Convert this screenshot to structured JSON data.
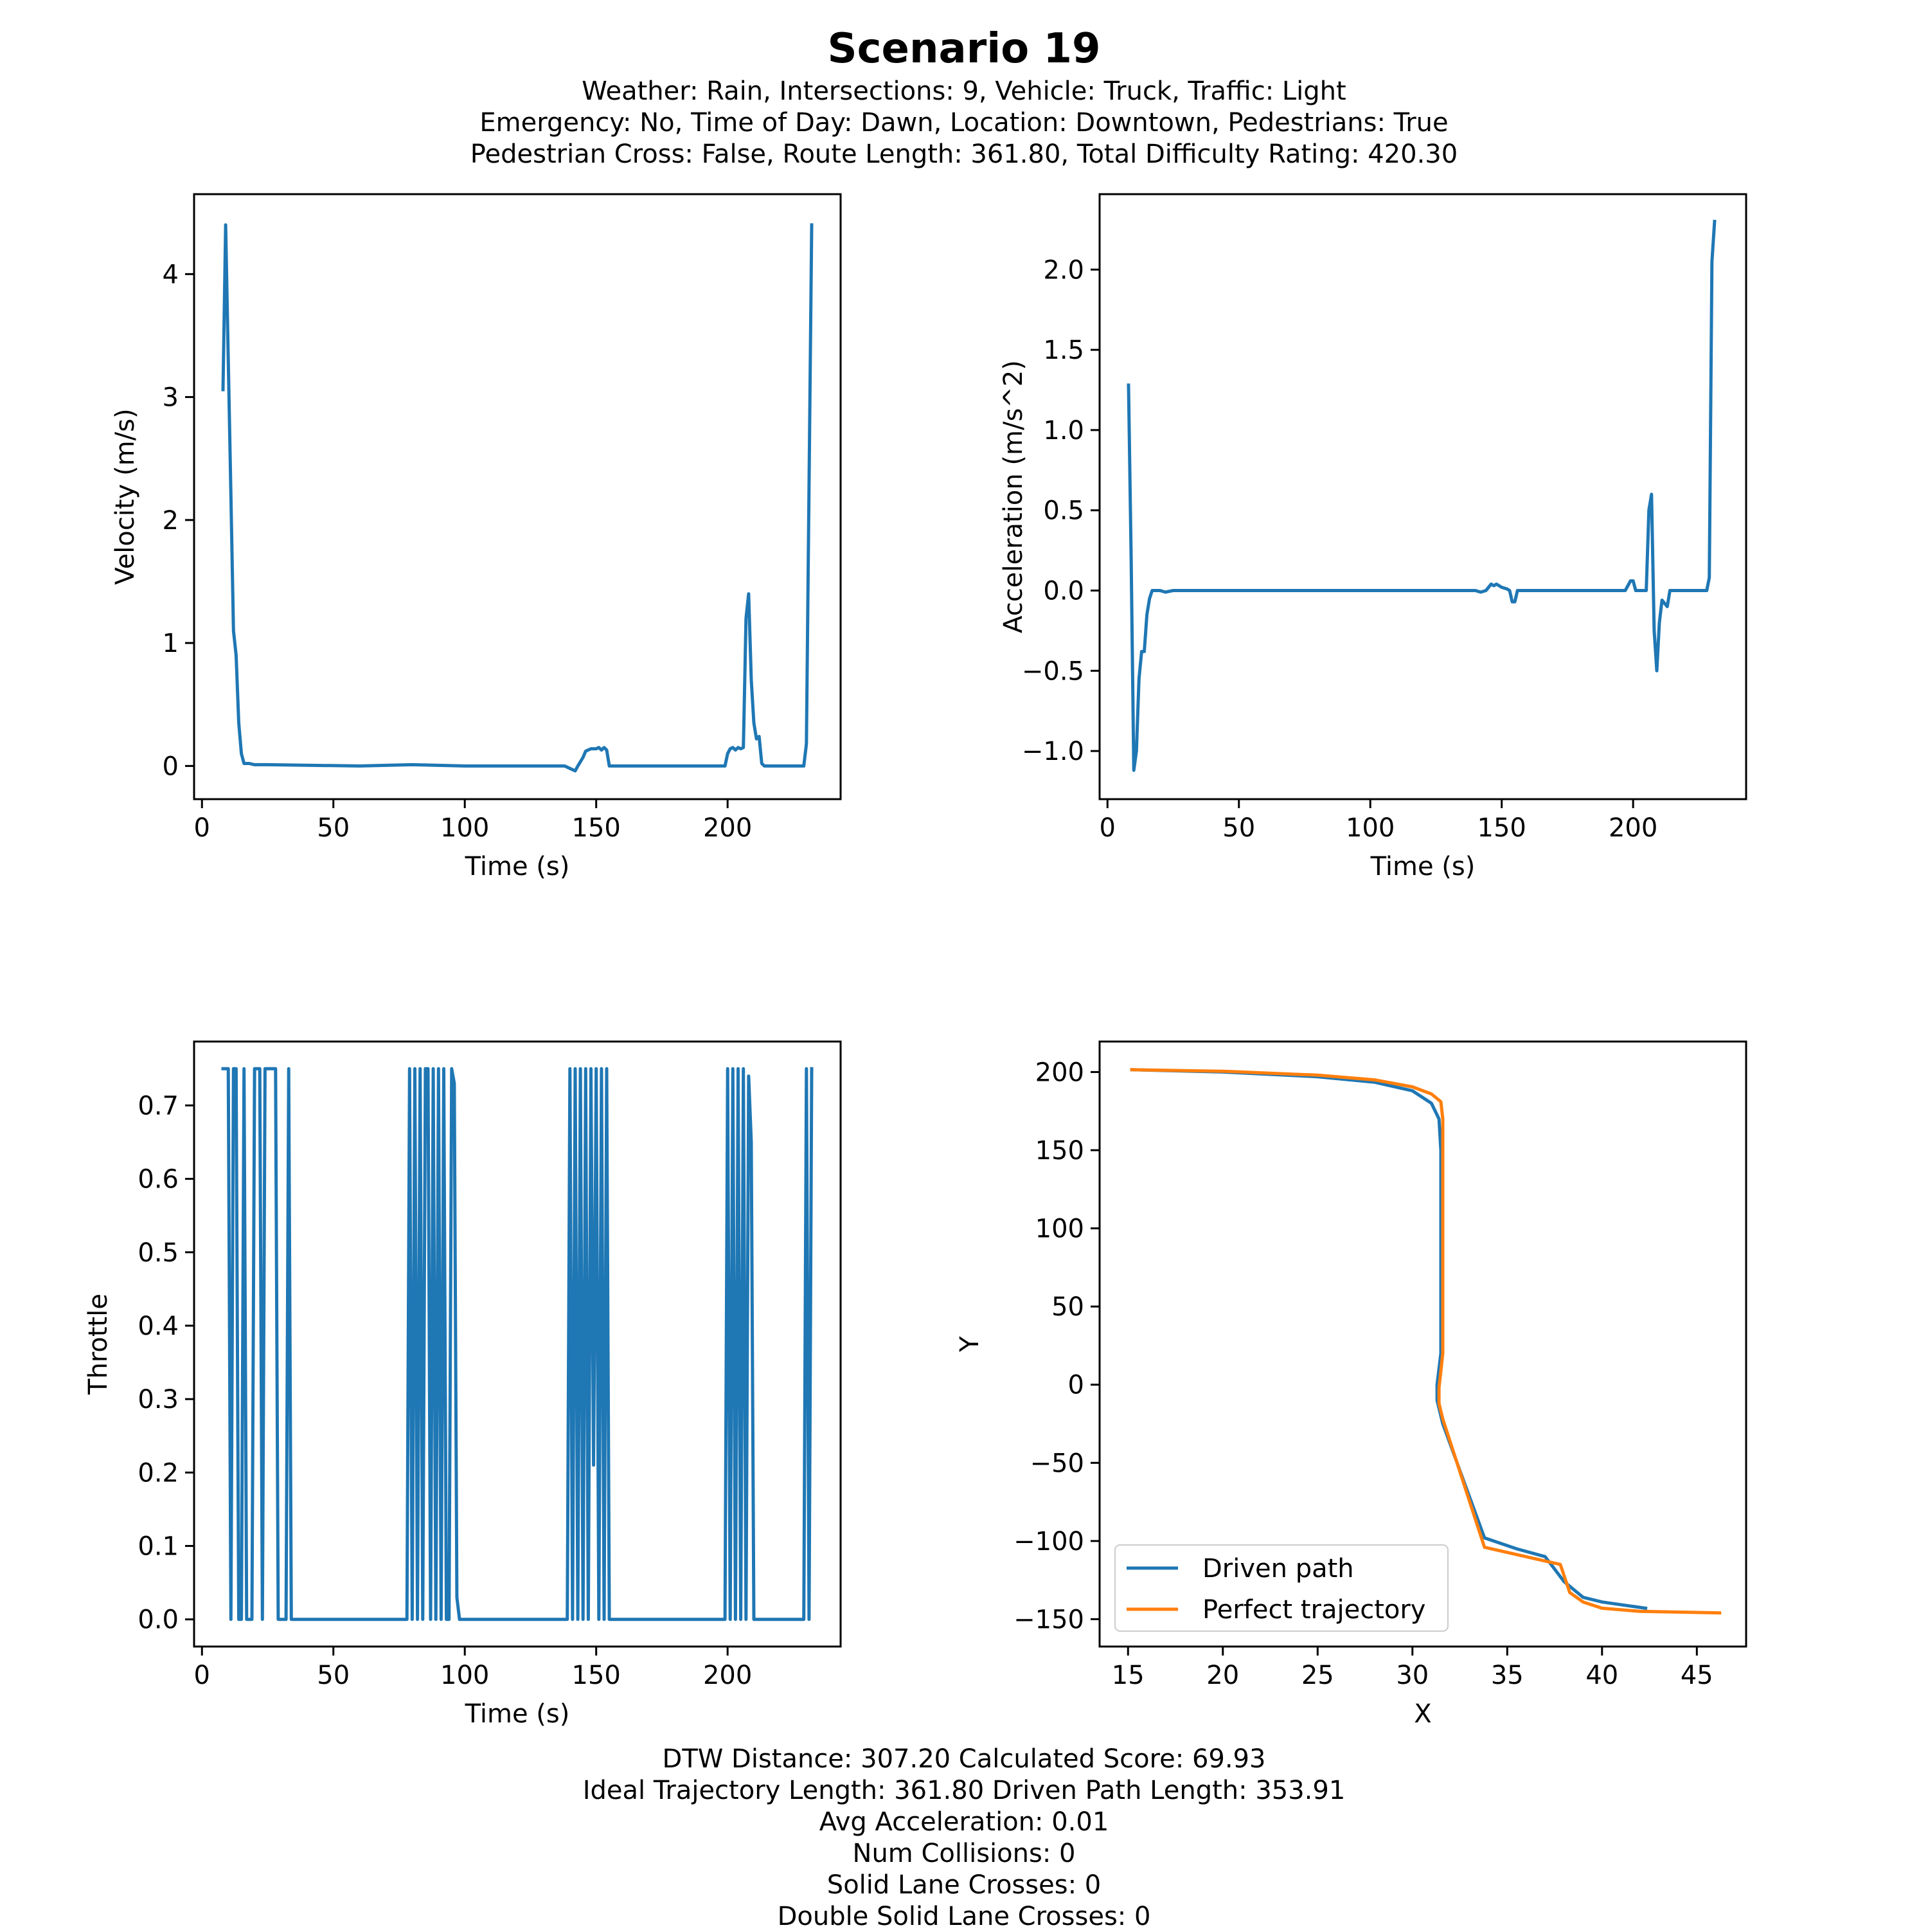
{
  "figure": {
    "title": "Scenario 19",
    "subtitle_lines": [
      "Weather: Rain, Intersections: 9, Vehicle: Truck, Traffic: Light",
      "Emergency: No, Time of Day: Dawn, Location: Downtown, Pedestrians: True",
      "Pedestrian Cross: False, Route Length: 361.80, Total Difficulty Rating: 420.30"
    ],
    "metrics_lines": [
      "DTW Distance: 307.20  Calculated Score: 69.93",
      "Ideal Trajectory Length: 361.80   Driven Path Length: 353.91",
      "Avg Acceleration: 0.01",
      "Num Collisions: 0",
      "Solid Lane Crosses: 0",
      "Double Solid Lane Crosses: 0"
    ]
  },
  "colors": {
    "series1": "#1f77b4",
    "series2": "#ff7f0e",
    "axis": "#000000"
  },
  "chart_data": [
    {
      "id": "velocity",
      "type": "line",
      "xlabel": "Time (s)",
      "ylabel": "Velocity (m/s)",
      "xlim": [
        -3,
        243
      ],
      "ylim": [
        -0.27,
        4.65
      ],
      "xticks": [
        0,
        50,
        100,
        150,
        200
      ],
      "yticks": [
        0,
        1,
        2,
        3,
        4
      ],
      "ytick_labels": [
        "0",
        "1",
        "2",
        "3",
        "4"
      ],
      "series": [
        {
          "name": "Velocity",
          "color_key": "series1",
          "points": [
            [
              8,
              3.06
            ],
            [
              9,
              4.4
            ],
            [
              11,
              2.2
            ],
            [
              12,
              1.1
            ],
            [
              13,
              0.9
            ],
            [
              14,
              0.35
            ],
            [
              15,
              0.1
            ],
            [
              16,
              0.02
            ],
            [
              18,
              0.02
            ],
            [
              20,
              0.01
            ],
            [
              25,
              0.01
            ],
            [
              60,
              0.0
            ],
            [
              80,
              0.01
            ],
            [
              100,
              0.0
            ],
            [
              138,
              0.0
            ],
            [
              140,
              -0.02
            ],
            [
              142,
              -0.04
            ],
            [
              143,
              0.0
            ],
            [
              145,
              0.07
            ],
            [
              146,
              0.12
            ],
            [
              148,
              0.14
            ],
            [
              150,
              0.14
            ],
            [
              151,
              0.15
            ],
            [
              152,
              0.13
            ],
            [
              153,
              0.15
            ],
            [
              154,
              0.13
            ],
            [
              155,
              0.0
            ],
            [
              199,
              0.0
            ],
            [
              200,
              0.1
            ],
            [
              201,
              0.14
            ],
            [
              202,
              0.15
            ],
            [
              203,
              0.13
            ],
            [
              204,
              0.15
            ],
            [
              205,
              0.14
            ],
            [
              206,
              0.15
            ],
            [
              207,
              1.2
            ],
            [
              208,
              1.4
            ],
            [
              209,
              0.7
            ],
            [
              210,
              0.35
            ],
            [
              211,
              0.22
            ],
            [
              212,
              0.24
            ],
            [
              213,
              0.02
            ],
            [
              214,
              0.0
            ],
            [
              229,
              0.0
            ],
            [
              230,
              0.18
            ],
            [
              232,
              4.4
            ]
          ]
        }
      ]
    },
    {
      "id": "acceleration",
      "type": "line",
      "xlabel": "Time (s)",
      "ylabel": "Acceleration (m/s^2)",
      "xlim": [
        -3,
        243
      ],
      "ylim": [
        -1.3,
        2.47
      ],
      "xticks": [
        0,
        50,
        100,
        150,
        200
      ],
      "yticks": [
        -1.0,
        -0.5,
        0.0,
        0.5,
        1.0,
        1.5,
        2.0
      ],
      "ytick_labels": [
        "−1.0",
        "−0.5",
        "0.0",
        "0.5",
        "1.0",
        "1.5",
        "2.0"
      ],
      "series": [
        {
          "name": "Acceleration",
          "color_key": "series1",
          "points": [
            [
              8,
              1.28
            ],
            [
              9,
              0.2
            ],
            [
              10,
              -1.12
            ],
            [
              11,
              -1.0
            ],
            [
              12,
              -0.55
            ],
            [
              13,
              -0.38
            ],
            [
              14,
              -0.38
            ],
            [
              15,
              -0.15
            ],
            [
              16,
              -0.05
            ],
            [
              17,
              0.0
            ],
            [
              20,
              0.0
            ],
            [
              22,
              -0.01
            ],
            [
              25,
              0.0
            ],
            [
              100,
              0.0
            ],
            [
              140,
              0.0
            ],
            [
              142,
              -0.01
            ],
            [
              144,
              0.0
            ],
            [
              146,
              0.04
            ],
            [
              147,
              0.03
            ],
            [
              148,
              0.04
            ],
            [
              150,
              0.02
            ],
            [
              152,
              0.01
            ],
            [
              153,
              0.0
            ],
            [
              154,
              -0.07
            ],
            [
              155,
              -0.07
            ],
            [
              156,
              0.0
            ],
            [
              197,
              0.0
            ],
            [
              199,
              0.06
            ],
            [
              200,
              0.06
            ],
            [
              201,
              0.0
            ],
            [
              204,
              0.0
            ],
            [
              205,
              0.0
            ],
            [
              206,
              0.5
            ],
            [
              207,
              0.6
            ],
            [
              208,
              -0.25
            ],
            [
              209,
              -0.5
            ],
            [
              210,
              -0.2
            ],
            [
              211,
              -0.06
            ],
            [
              212,
              -0.08
            ],
            [
              213,
              -0.1
            ],
            [
              214,
              0.0
            ],
            [
              228,
              0.0
            ],
            [
              229,
              0.08
            ],
            [
              230,
              2.05
            ],
            [
              231,
              2.3
            ]
          ]
        }
      ]
    },
    {
      "id": "throttle",
      "type": "line",
      "xlabel": "Time (s)",
      "ylabel": "Throttle",
      "xlim": [
        -3,
        243
      ],
      "ylim": [
        -0.037,
        0.787
      ],
      "xticks": [
        0,
        50,
        100,
        150,
        200
      ],
      "yticks": [
        0.0,
        0.1,
        0.2,
        0.3,
        0.4,
        0.5,
        0.6,
        0.7
      ],
      "ytick_labels": [
        "0.0",
        "0.1",
        "0.2",
        "0.3",
        "0.4",
        "0.5",
        "0.6",
        "0.7"
      ],
      "series": [
        {
          "name": "Throttle",
          "color_key": "series1",
          "points": [
            [
              8,
              0.75
            ],
            [
              10,
              0.75
            ],
            [
              11,
              0
            ],
            [
              12,
              0.75
            ],
            [
              13,
              0.75
            ],
            [
              14,
              0
            ],
            [
              15,
              0
            ],
            [
              16,
              0.75
            ],
            [
              17,
              0
            ],
            [
              19,
              0
            ],
            [
              20,
              0.75
            ],
            [
              22,
              0.75
            ],
            [
              23,
              0
            ],
            [
              24,
              0.75
            ],
            [
              28,
              0.75
            ],
            [
              29,
              0
            ],
            [
              32,
              0
            ],
            [
              33,
              0.75
            ],
            [
              34,
              0
            ],
            [
              78,
              0
            ],
            [
              79,
              0.75
            ],
            [
              80,
              0
            ],
            [
              81,
              0.75
            ],
            [
              82,
              0
            ],
            [
              83,
              0.75
            ],
            [
              84,
              0
            ],
            [
              85,
              0.75
            ],
            [
              86,
              0.75
            ],
            [
              87,
              0
            ],
            [
              88,
              0.75
            ],
            [
              89,
              0
            ],
            [
              90,
              0.75
            ],
            [
              91,
              0
            ],
            [
              92,
              0.75
            ],
            [
              93,
              0
            ],
            [
              94,
              0
            ],
            [
              95,
              0.75
            ],
            [
              96,
              0.73
            ],
            [
              97,
              0.03
            ],
            [
              98,
              0
            ],
            [
              139,
              0
            ],
            [
              140,
              0.75
            ],
            [
              141,
              0
            ],
            [
              142,
              0.75
            ],
            [
              143,
              0
            ],
            [
              144,
              0.75
            ],
            [
              145,
              0
            ],
            [
              146,
              0.75
            ],
            [
              147,
              0
            ],
            [
              148,
              0.75
            ],
            [
              149,
              0.21
            ],
            [
              150,
              0.75
            ],
            [
              151,
              0
            ],
            [
              152,
              0.75
            ],
            [
              153,
              0
            ],
            [
              154,
              0.75
            ],
            [
              155,
              0
            ],
            [
              199,
              0
            ],
            [
              200,
              0.75
            ],
            [
              201,
              0
            ],
            [
              202,
              0.75
            ],
            [
              203,
              0
            ],
            [
              204,
              0.75
            ],
            [
              205,
              0
            ],
            [
              206,
              0.75
            ],
            [
              207,
              0
            ],
            [
              208,
              0.74
            ],
            [
              209,
              0.65
            ],
            [
              210,
              0
            ],
            [
              229,
              0
            ],
            [
              230,
              0.75
            ],
            [
              231,
              0
            ],
            [
              232,
              0.75
            ]
          ]
        }
      ]
    },
    {
      "id": "trajectory",
      "type": "line",
      "xlabel": "X",
      "ylabel": "Y",
      "xlim": [
        13.5,
        47.6
      ],
      "ylim": [
        -167.5,
        219.5
      ],
      "xticks": [
        15,
        20,
        25,
        30,
        35,
        40,
        45
      ],
      "yticks": [
        -150,
        -100,
        -50,
        0,
        50,
        100,
        150,
        200
      ],
      "ytick_labels": [
        "−150",
        "−100",
        "−50",
        "0",
        "50",
        "100",
        "150",
        "200"
      ],
      "legend": {
        "location": "lower-left",
        "entries": [
          "Driven path",
          "Perfect trajectory"
        ]
      },
      "series": [
        {
          "name": "Driven path",
          "color_key": "series1",
          "points": [
            [
              15.2,
              201.5
            ],
            [
              20,
              200
            ],
            [
              25,
              197
            ],
            [
              28,
              193.5
            ],
            [
              30,
              188
            ],
            [
              31,
              180
            ],
            [
              31.4,
              170
            ],
            [
              31.5,
              150
            ],
            [
              31.5,
              100
            ],
            [
              31.5,
              20
            ],
            [
              31.3,
              0
            ],
            [
              31.3,
              -10
            ],
            [
              31.6,
              -25
            ],
            [
              33.8,
              -98
            ],
            [
              35.5,
              -105
            ],
            [
              37,
              -110
            ],
            [
              38,
              -126
            ],
            [
              39,
              -136
            ],
            [
              40,
              -139
            ],
            [
              42.3,
              -143
            ]
          ]
        },
        {
          "name": "Perfect trajectory",
          "color_key": "series2",
          "points": [
            [
              15.2,
              201.5
            ],
            [
              20,
              200.5
            ],
            [
              25,
              198
            ],
            [
              28,
              195
            ],
            [
              30,
              190.5
            ],
            [
              31,
              186
            ],
            [
              31.5,
              181
            ],
            [
              31.6,
              170
            ],
            [
              31.6,
              100
            ],
            [
              31.6,
              40
            ],
            [
              31.6,
              20
            ],
            [
              31.4,
              -2
            ],
            [
              31.4,
              -12
            ],
            [
              31.6,
              -22
            ],
            [
              33.8,
              -104
            ],
            [
              37.8,
              -115
            ],
            [
              38.3,
              -133
            ],
            [
              39,
              -139
            ],
            [
              40,
              -143
            ],
            [
              42,
              -145
            ],
            [
              46.2,
              -146
            ]
          ]
        }
      ]
    }
  ]
}
